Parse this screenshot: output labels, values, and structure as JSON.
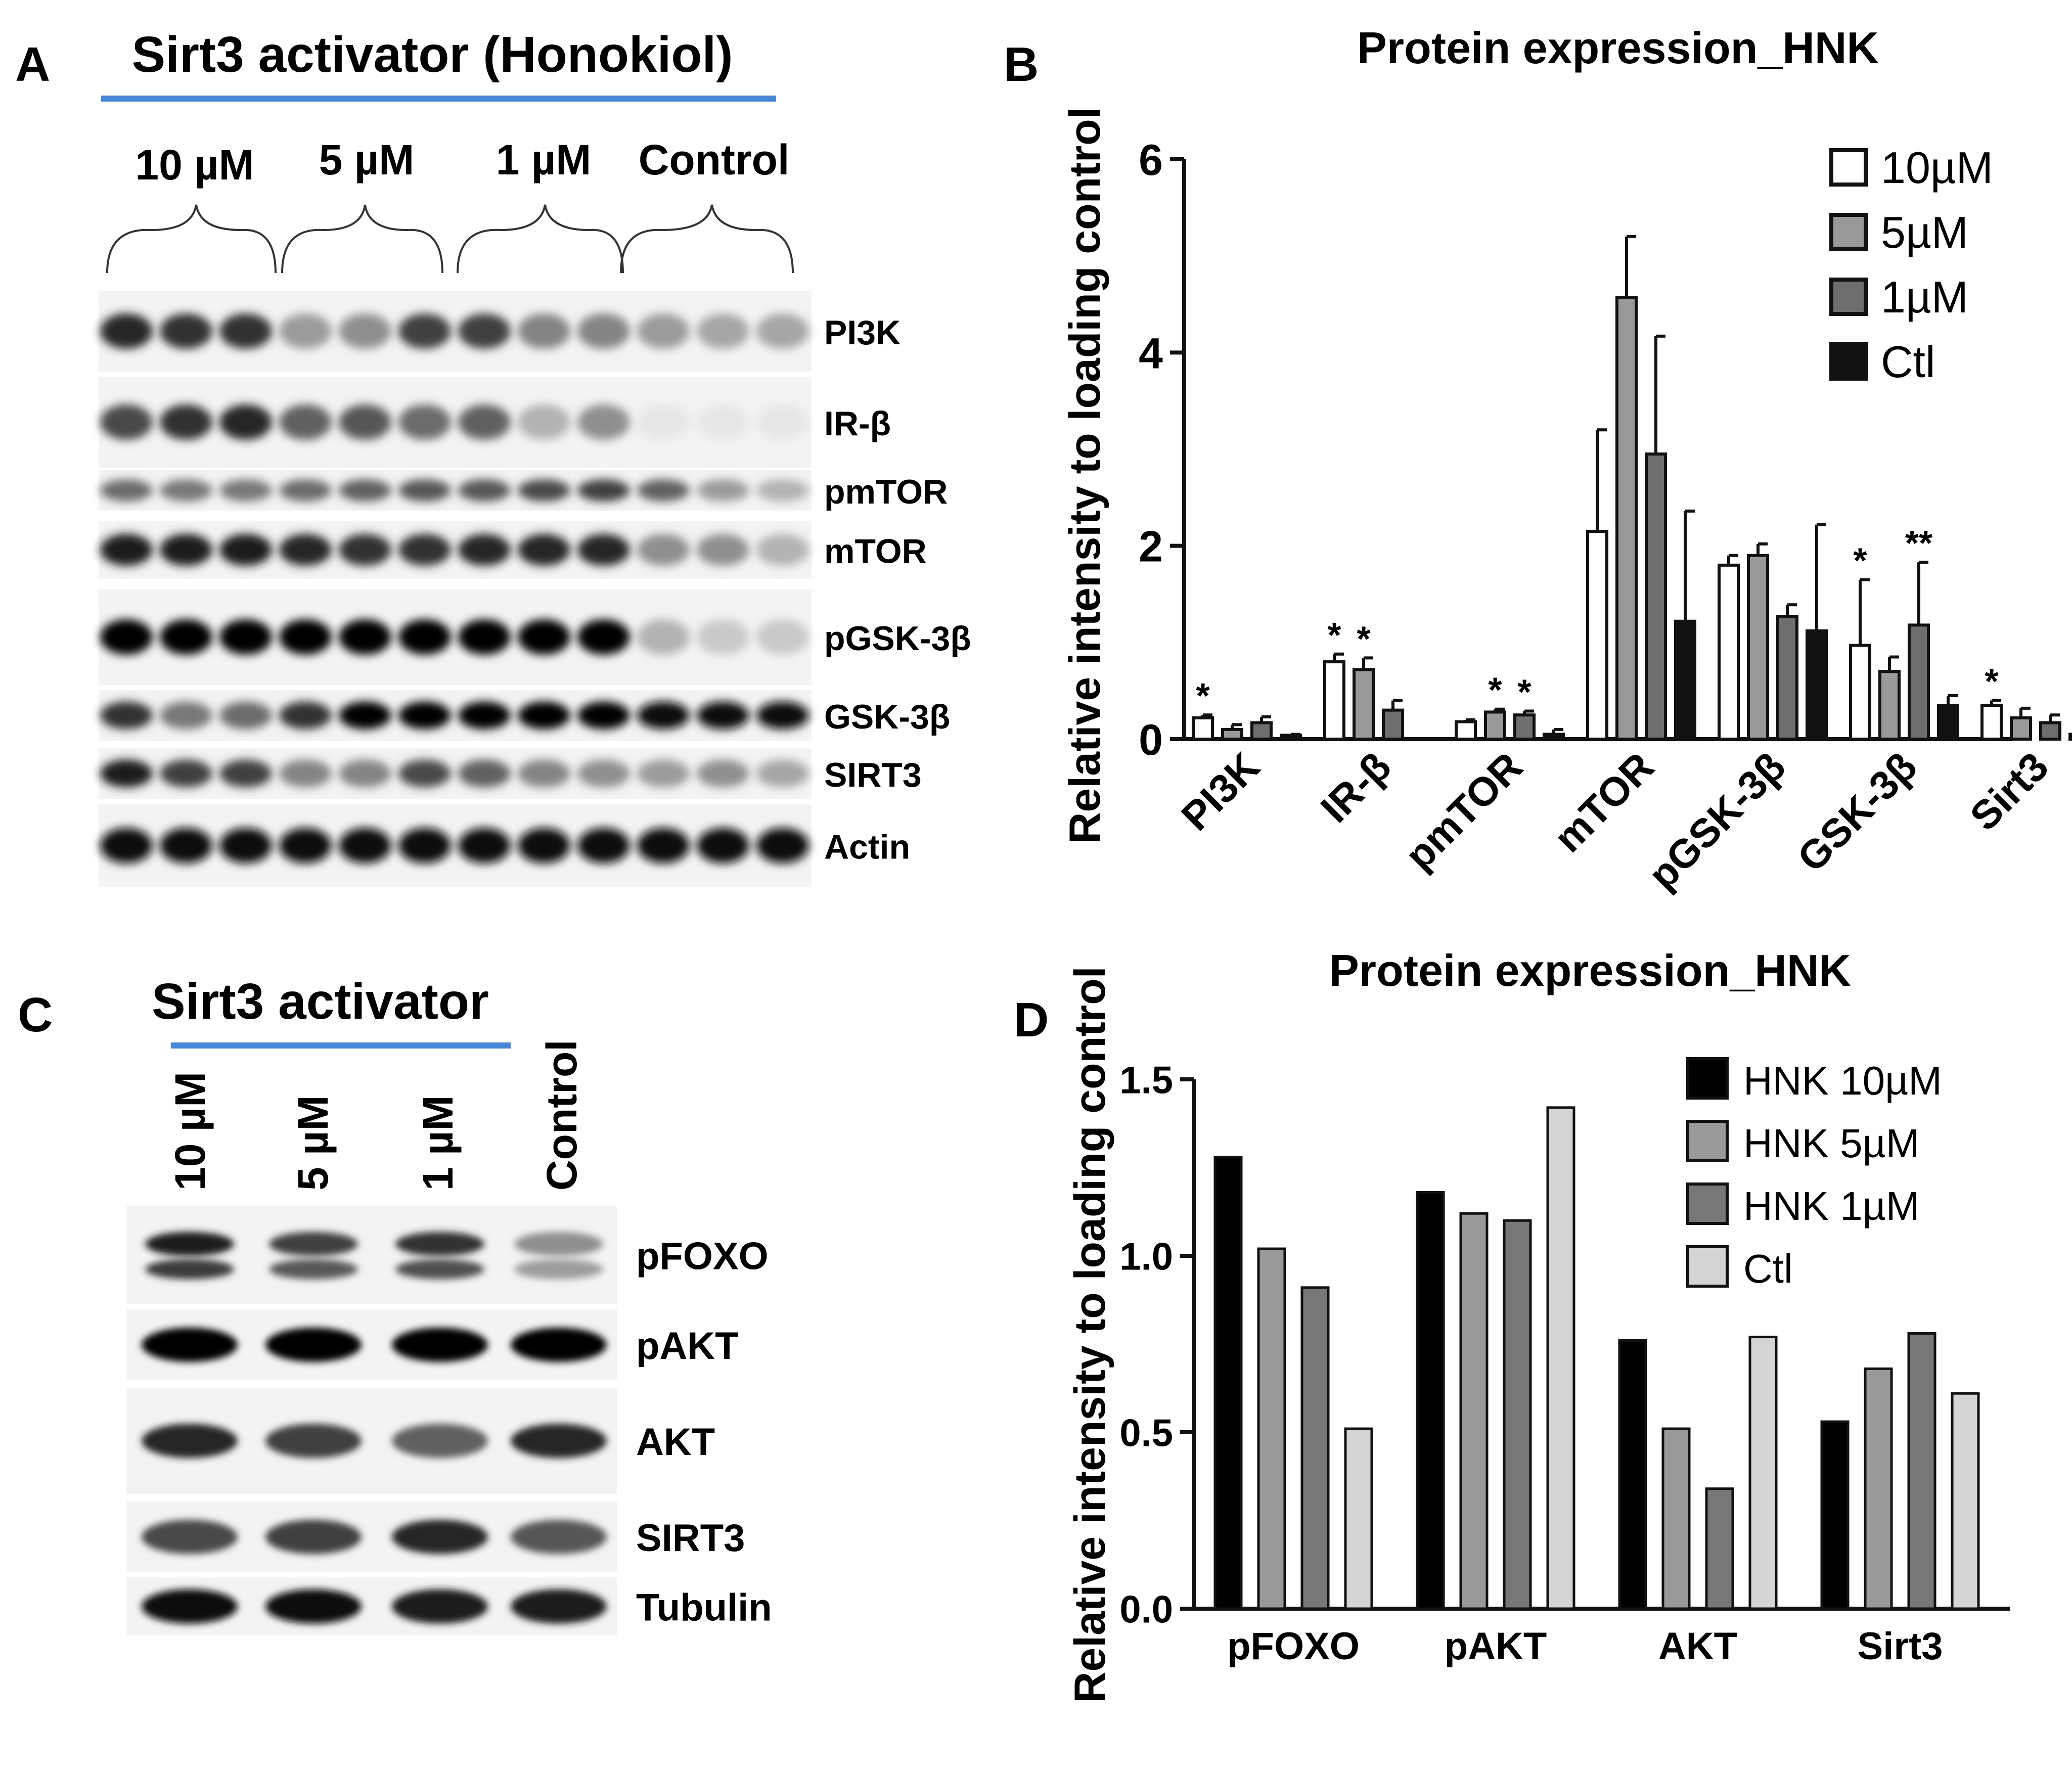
{
  "panels": {
    "A": {
      "letter": "A",
      "title": "Sirt3 activator (Honokiol)",
      "groups": [
        "10 µM",
        "5 µM",
        "1 µM",
        "Control"
      ],
      "rows": [
        {
          "label": "PI3K",
          "intensities": [
            0.85,
            0.8,
            0.8,
            0.35,
            0.4,
            0.75,
            0.75,
            0.45,
            0.45,
            0.35,
            0.3,
            0.3
          ]
        },
        {
          "label": "IR-β",
          "intensities": [
            0.7,
            0.8,
            0.85,
            0.6,
            0.65,
            0.55,
            0.6,
            0.25,
            0.4,
            0.02,
            0.02,
            0.02
          ]
        },
        {
          "label": "pmTOR",
          "intensities": [
            0.55,
            0.5,
            0.5,
            0.55,
            0.6,
            0.65,
            0.65,
            0.7,
            0.75,
            0.6,
            0.35,
            0.25
          ]
        },
        {
          "label": "mTOR",
          "intensities": [
            0.9,
            0.9,
            0.9,
            0.85,
            0.8,
            0.8,
            0.85,
            0.85,
            0.85,
            0.4,
            0.4,
            0.25
          ]
        },
        {
          "label": "pGSK-3β",
          "intensities": [
            1,
            1,
            1,
            1,
            1,
            1,
            1,
            1,
            1,
            0.25,
            0.15,
            0.15
          ]
        },
        {
          "label": "GSK-3β",
          "intensities": [
            0.8,
            0.5,
            0.55,
            0.8,
            1,
            1,
            1,
            1,
            1,
            0.95,
            0.95,
            0.95
          ]
        },
        {
          "label": "SIRT3",
          "intensities": [
            0.9,
            0.75,
            0.75,
            0.45,
            0.45,
            0.7,
            0.6,
            0.45,
            0.4,
            0.35,
            0.4,
            0.3
          ]
        },
        {
          "label": "Actin",
          "intensities": [
            0.95,
            0.95,
            0.95,
            0.95,
            0.95,
            0.95,
            0.95,
            0.95,
            0.95,
            0.95,
            0.95,
            0.95
          ]
        }
      ]
    },
    "B": {
      "letter": "B",
      "legend": [
        "10µM",
        "5µM",
        "1µM",
        "Ctl"
      ]
    },
    "C": {
      "letter": "C",
      "title": "Sirt3 activator",
      "lanes": [
        "10 µM",
        "5 µM",
        "1 µM",
        "Control"
      ],
      "rows": [
        {
          "label": "pFOXO",
          "intensities": [
            0.9,
            0.75,
            0.8,
            0.4
          ]
        },
        {
          "label": "pAKT",
          "intensities": [
            1,
            1,
            1,
            1
          ]
        },
        {
          "label": "AKT",
          "intensities": [
            0.85,
            0.75,
            0.6,
            0.85
          ]
        },
        {
          "label": "SIRT3",
          "intensities": [
            0.7,
            0.75,
            0.85,
            0.65
          ]
        },
        {
          "label": "Tubulin",
          "intensities": [
            0.95,
            0.95,
            0.9,
            0.9
          ]
        }
      ]
    },
    "D": {
      "letter": "D",
      "legend": [
        "HNK 10µM",
        "HNK 5µM",
        "HNK 1µM",
        "Ctl"
      ]
    }
  },
  "chart_data": [
    {
      "type": "bar",
      "title": "Protein expression_HNK",
      "xlabel": "",
      "ylabel": "Relative intensity to loading control",
      "ylim": [
        0,
        6
      ],
      "yticks": [
        "0",
        "2",
        "4",
        "6"
      ],
      "categories": [
        "PI3K",
        "IR-β",
        "pmTOR",
        "mTOR",
        "pGSK-3β",
        "GSK-3β",
        "Sirt3"
      ],
      "series": [
        {
          "name": "10µM",
          "color": "#ffffff",
          "values": [
            0.22,
            0.8,
            0.18,
            2.15,
            1.8,
            0.97,
            0.35
          ],
          "errors": [
            0.03,
            0.08,
            0.02,
            1.05,
            0.1,
            0.68,
            0.05
          ]
        },
        {
          "name": "5µM",
          "color": "#999999",
          "values": [
            0.1,
            0.72,
            0.28,
            4.57,
            1.9,
            0.7,
            0.22
          ],
          "errors": [
            0.05,
            0.12,
            0.03,
            0.63,
            0.12,
            0.15,
            0.1
          ]
        },
        {
          "name": "1µM",
          "color": "#6e6e6e",
          "values": [
            0.17,
            0.3,
            0.25,
            2.95,
            1.27,
            1.18,
            0.17
          ],
          "errors": [
            0.06,
            0.1,
            0.04,
            1.22,
            0.12,
            0.65,
            0.08
          ]
        },
        {
          "name": "Ctl",
          "color": "#111111",
          "values": [
            0.04,
            0,
            0.05,
            1.22,
            1.12,
            0.35,
            0.05
          ],
          "errors": [
            0.01,
            0,
            0.05,
            1.14,
            1.1,
            0.1,
            0.02
          ]
        }
      ],
      "significance": [
        {
          "category": 0,
          "series": 0,
          "mark": "*"
        },
        {
          "category": 1,
          "series": 0,
          "mark": "*"
        },
        {
          "category": 1,
          "series": 1,
          "mark": "*"
        },
        {
          "category": 2,
          "series": 1,
          "mark": "*"
        },
        {
          "category": 2,
          "series": 2,
          "mark": "*"
        },
        {
          "category": 5,
          "series": 0,
          "mark": "*"
        },
        {
          "category": 5,
          "series": 2,
          "mark": "**"
        },
        {
          "category": 6,
          "series": 0,
          "mark": "*"
        }
      ],
      "legend_position": "top-right"
    },
    {
      "type": "bar",
      "title": "Protein expression_HNK",
      "xlabel": "",
      "ylabel": "Relative intensity to loading control",
      "ylim": [
        0,
        1.5
      ],
      "yticks": [
        "0.0",
        "0.5",
        "1.0",
        "1.5"
      ],
      "categories": [
        "pFOXO",
        "pAKT",
        "AKT",
        "Sirt3"
      ],
      "series": [
        {
          "name": "HNK 10µM",
          "color": "#000000",
          "values": [
            1.28,
            1.18,
            0.76,
            0.53
          ]
        },
        {
          "name": "HNK 5µM",
          "color": "#999999",
          "values": [
            1.02,
            1.12,
            0.51,
            0.68
          ]
        },
        {
          "name": "HNK 1µM",
          "color": "#777777",
          "values": [
            0.91,
            1.1,
            0.34,
            0.78
          ]
        },
        {
          "name": "Ctl",
          "color": "#d4d4d4",
          "values": [
            0.51,
            1.42,
            0.77,
            0.61
          ]
        }
      ],
      "legend_position": "top-right"
    }
  ]
}
